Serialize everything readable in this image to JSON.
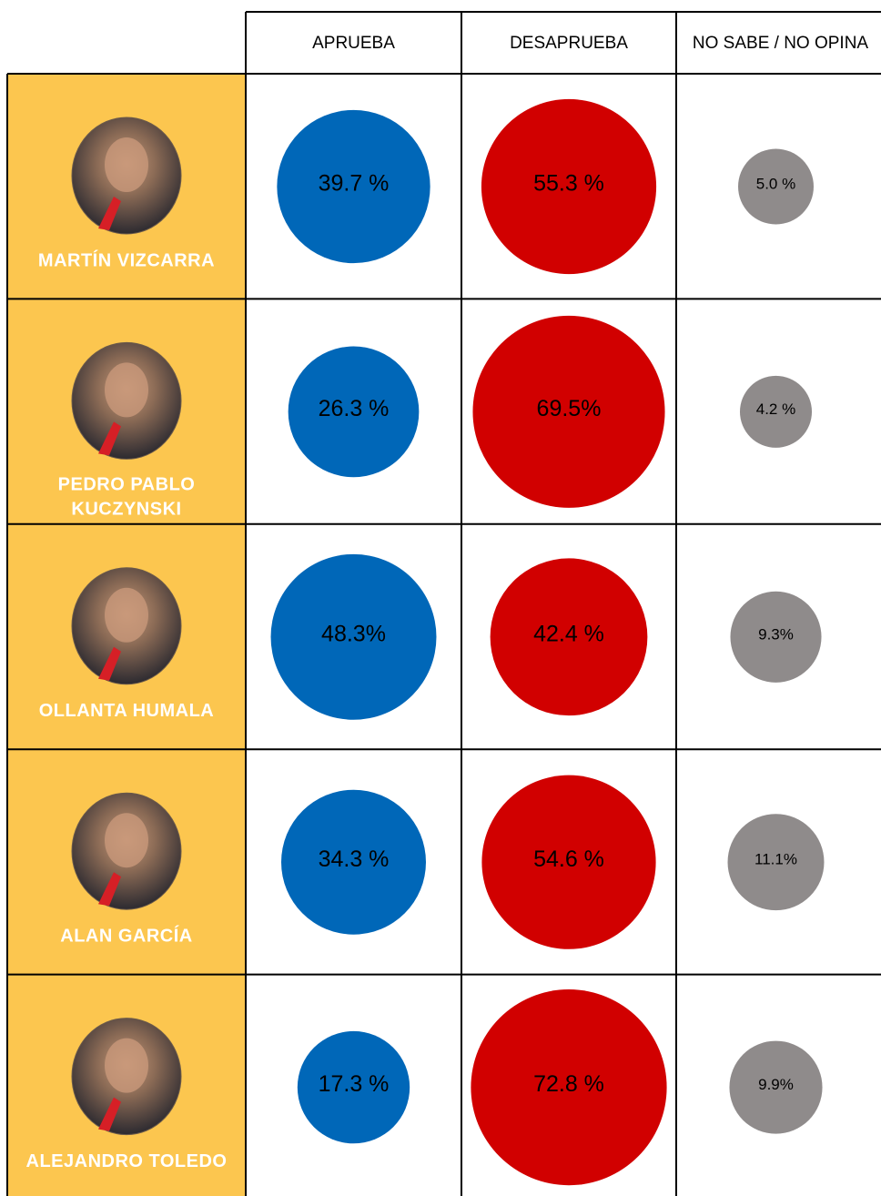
{
  "table": {
    "columns": [
      "APRUEBA",
      "DESAPRUEBA",
      "NO SABE / NO OPINA"
    ],
    "colors": [
      "#0067b8",
      "#d10000",
      "#8f8b8b"
    ],
    "rows": [
      {
        "name": [
          "MARTÍN VIZCARRA"
        ],
        "values": [
          39.7,
          55.3,
          5.0
        ],
        "value_labels": [
          "39.7 %",
          "55.3 %",
          "5.0 %"
        ]
      },
      {
        "name": [
          "PEDRO PABLO",
          "KUCZYNSKI"
        ],
        "values": [
          26.3,
          69.5,
          4.2
        ],
        "value_labels": [
          "26.3 %",
          "69.5%",
          "4.2 %"
        ]
      },
      {
        "name": [
          "OLLANTA HUMALA"
        ],
        "values": [
          48.3,
          42.4,
          9.3
        ],
        "value_labels": [
          "48.3%",
          "42.4 %",
          "9.3%"
        ]
      },
      {
        "name": [
          "ALAN GARCÍA"
        ],
        "values": [
          34.3,
          54.6,
          11.1
        ],
        "value_labels": [
          "34.3 %",
          "54.6 %",
          "11.1%"
        ]
      },
      {
        "name": [
          "ALEJANDRO TOLEDO"
        ],
        "values": [
          17.3,
          72.8,
          9.9
        ],
        "value_labels": [
          "17.3 %",
          "72.8 %",
          "9.9%"
        ]
      }
    ]
  }
}
